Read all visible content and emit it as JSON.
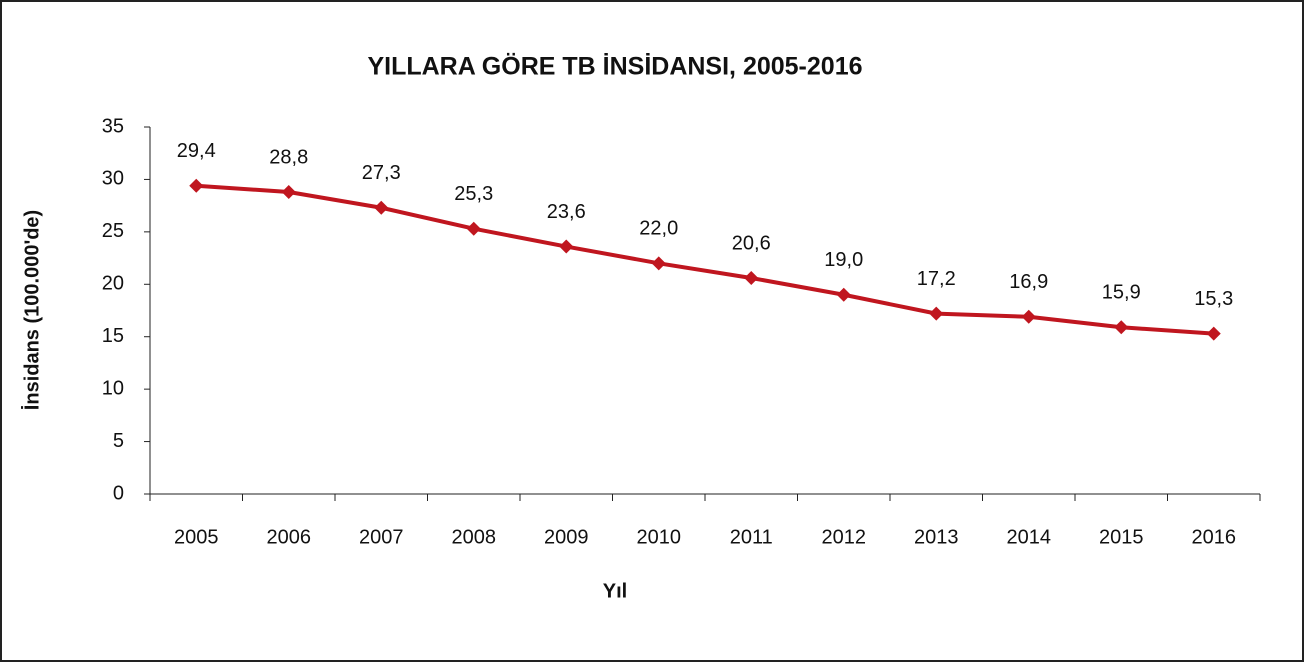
{
  "chart_data": {
    "type": "line",
    "title": "YILLARA GÖRE TB İNSİDANSI, 2005-2016",
    "y_label": "İnsidans (100.000'de)",
    "x_label": "Yıl",
    "categories": [
      "2005",
      "2006",
      "2007",
      "2008",
      "2009",
      "2010",
      "2011",
      "2012",
      "2013",
      "2014",
      "2015",
      "2016"
    ],
    "values": [
      29.4,
      28.8,
      27.3,
      25.3,
      23.6,
      22.0,
      20.6,
      19.0,
      17.2,
      16.9,
      15.9,
      15.3
    ],
    "value_labels": [
      "29,4",
      "28,8",
      "27,3",
      "25,3",
      "23,6",
      "22,0",
      "20,6",
      "19,0",
      "17,2",
      "16,9",
      "15,9",
      "15,3"
    ],
    "color": "#c0161f",
    "ylim": [
      0,
      35
    ],
    "yticks": [
      0,
      5,
      10,
      15,
      20,
      25,
      30,
      35
    ]
  }
}
